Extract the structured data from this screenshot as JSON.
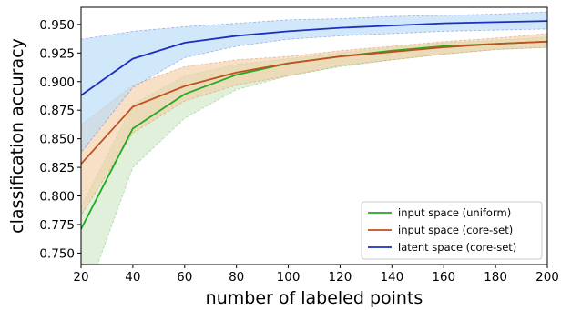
{
  "chart_data": {
    "type": "line",
    "title": "",
    "xlabel": "number of labeled points",
    "ylabel": "classification accuracy",
    "x": [
      20,
      40,
      60,
      80,
      100,
      120,
      140,
      160,
      180,
      200
    ],
    "xlim": [
      20,
      200
    ],
    "ylim": [
      0.74,
      0.965
    ],
    "xticks": [
      "20",
      "40",
      "60",
      "80",
      "100",
      "120",
      "140",
      "160",
      "180",
      "200"
    ],
    "yticks": [
      "0.750",
      "0.775",
      "0.800",
      "0.825",
      "0.850",
      "0.875",
      "0.900",
      "0.925",
      "0.950"
    ],
    "grid": false,
    "legend_position": "lower-right",
    "series": [
      {
        "name": "input space (uniform)",
        "color": "#22aa22",
        "band_color": "#cfe8c6",
        "values": [
          0.771,
          0.859,
          0.889,
          0.906,
          0.916,
          0.922,
          0.927,
          0.931,
          0.933,
          0.935
        ],
        "upper": [
          0.79,
          0.88,
          0.905,
          0.915,
          0.92,
          0.925,
          0.93,
          0.934,
          0.936,
          0.939
        ],
        "lower": [
          0.7,
          0.825,
          0.868,
          0.893,
          0.905,
          0.913,
          0.919,
          0.924,
          0.928,
          0.93
        ]
      },
      {
        "name": "input space (core-set)",
        "color": "#c0501f",
        "band_color": "#f2cfa8",
        "values": [
          0.828,
          0.878,
          0.896,
          0.908,
          0.916,
          0.922,
          0.926,
          0.93,
          0.933,
          0.935
        ],
        "upper": [
          0.862,
          0.897,
          0.913,
          0.919,
          0.922,
          0.927,
          0.931,
          0.935,
          0.938,
          0.942
        ],
        "lower": [
          0.783,
          0.855,
          0.883,
          0.897,
          0.905,
          0.914,
          0.919,
          0.924,
          0.928,
          0.93
        ]
      },
      {
        "name": "latent space (core-set)",
        "color": "#1c2fbf",
        "band_color": "#b9dcf7",
        "values": [
          0.888,
          0.92,
          0.934,
          0.94,
          0.944,
          0.947,
          0.949,
          0.951,
          0.952,
          0.953
        ],
        "upper": [
          0.937,
          0.944,
          0.948,
          0.951,
          0.954,
          0.955,
          0.957,
          0.958,
          0.959,
          0.961
        ],
        "lower": [
          0.838,
          0.895,
          0.921,
          0.931,
          0.937,
          0.94,
          0.942,
          0.944,
          0.945,
          0.946
        ]
      }
    ]
  }
}
